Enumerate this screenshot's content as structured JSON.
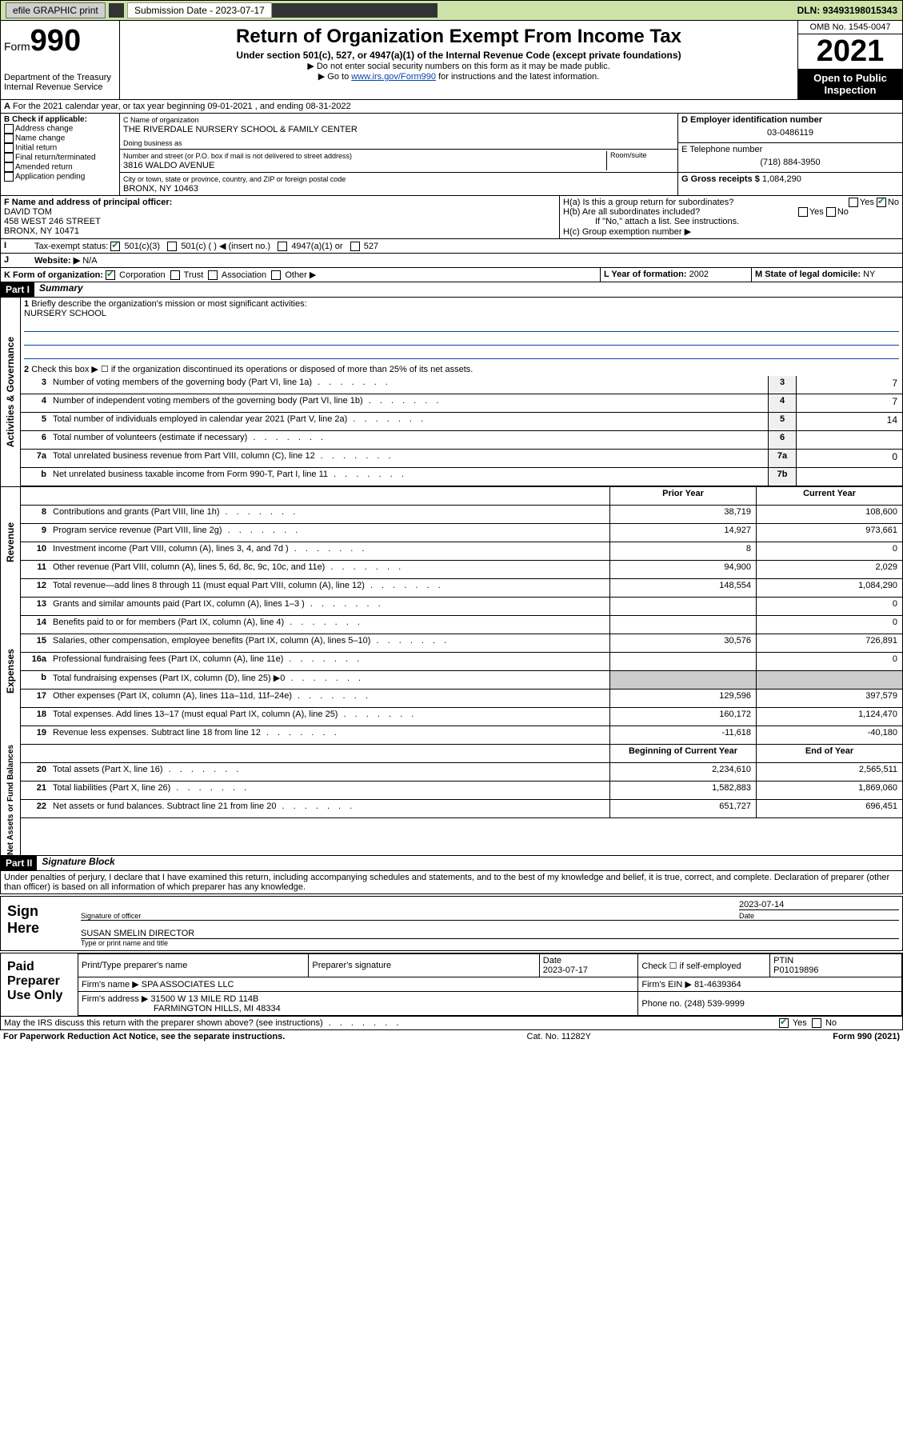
{
  "topbar": {
    "efile": "efile GRAPHIC print",
    "sub_label": "Submission Date - 2023-07-17",
    "dln": "DLN: 93493198015343"
  },
  "header": {
    "form_word": "Form",
    "form_num": "990",
    "dept": "Department of the Treasury Internal Revenue Service",
    "title": "Return of Organization Exempt From Income Tax",
    "sub1": "Under section 501(c), 527, or 4947(a)(1) of the Internal Revenue Code (except private foundations)",
    "sub2a": "▶ Do not enter social security numbers on this form as it may be made public.",
    "sub2b_pre": "▶ Go to ",
    "sub2b_link": "www.irs.gov/Form990",
    "sub2b_post": " for instructions and the latest information.",
    "omb": "OMB No. 1545-0047",
    "year": "2021",
    "open": "Open to Public Inspection"
  },
  "period": "For the 2021 calendar year, or tax year beginning 09-01-2021   , and ending 08-31-2022",
  "box_b": {
    "title": "B Check if applicable:",
    "items": [
      "Address change",
      "Name change",
      "Initial return",
      "Final return/terminated",
      "Amended return",
      "Application pending"
    ]
  },
  "box_c": {
    "label": "C Name of organization",
    "name": "THE RIVERDALE NURSERY SCHOOL & FAMILY CENTER",
    "dba_label": "Doing business as",
    "addr_label": "Number and street (or P.O. box if mail is not delivered to street address)",
    "room_label": "Room/suite",
    "addr": "3816 WALDO AVENUE",
    "city_label": "City or town, state or province, country, and ZIP or foreign postal code",
    "city": "BRONX, NY  10463"
  },
  "box_d": {
    "label": "D Employer identification number",
    "val": "03-0486119"
  },
  "box_e": {
    "label": "E Telephone number",
    "val": "(718) 884-3950"
  },
  "box_g": {
    "label": "G Gross receipts $",
    "val": "1,084,290"
  },
  "box_f": {
    "label": "F Name and address of principal officer:",
    "name": "DAVID TOM",
    "addr1": "458 WEST 246 STREET",
    "addr2": "BRONX, NY  10471"
  },
  "box_h": {
    "a": "H(a)  Is this a group return for subordinates?",
    "b": "H(b)  Are all subordinates included?",
    "note": "If \"No,\" attach a list. See instructions.",
    "c": "H(c)  Group exemption number ▶"
  },
  "box_i": {
    "label": "Tax-exempt status:",
    "opts": [
      "501(c)(3)",
      "501(c) (  ) ◀ (insert no.)",
      "4947(a)(1) or",
      "527"
    ]
  },
  "box_j": {
    "label": "Website: ▶",
    "val": "N/A"
  },
  "box_k": {
    "label": "K Form of organization:",
    "opts": [
      "Corporation",
      "Trust",
      "Association",
      "Other ▶"
    ]
  },
  "box_l": {
    "label": "L Year of formation:",
    "val": "2002"
  },
  "box_m": {
    "label": "M State of legal domicile:",
    "val": "NY"
  },
  "part1": {
    "hdr": "Part I",
    "title": "Summary",
    "l1": "Briefly describe the organization's mission or most significant activities:",
    "l1val": "NURSERY SCHOOL",
    "l2": "Check this box ▶ ☐  if the organization discontinued its operations or disposed of more than 25% of its net assets.",
    "gov_lines": [
      {
        "n": "3",
        "d": "Number of voting members of the governing body (Part VI, line 1a)",
        "box": "3",
        "v": "7"
      },
      {
        "n": "4",
        "d": "Number of independent voting members of the governing body (Part VI, line 1b)",
        "box": "4",
        "v": "7"
      },
      {
        "n": "5",
        "d": "Total number of individuals employed in calendar year 2021 (Part V, line 2a)",
        "box": "5",
        "v": "14"
      },
      {
        "n": "6",
        "d": "Total number of volunteers (estimate if necessary)",
        "box": "6",
        "v": ""
      },
      {
        "n": "7a",
        "d": "Total unrelated business revenue from Part VIII, column (C), line 12",
        "box": "7a",
        "v": "0"
      },
      {
        "n": "b",
        "d": "Net unrelated business taxable income from Form 990-T, Part I, line 11",
        "box": "7b",
        "v": ""
      }
    ],
    "col_hdr": {
      "prior": "Prior Year",
      "current": "Current Year"
    },
    "rev_lines": [
      {
        "n": "8",
        "d": "Contributions and grants (Part VIII, line 1h)",
        "p": "38,719",
        "c": "108,600"
      },
      {
        "n": "9",
        "d": "Program service revenue (Part VIII, line 2g)",
        "p": "14,927",
        "c": "973,661"
      },
      {
        "n": "10",
        "d": "Investment income (Part VIII, column (A), lines 3, 4, and 7d )",
        "p": "8",
        "c": "0"
      },
      {
        "n": "11",
        "d": "Other revenue (Part VIII, column (A), lines 5, 6d, 8c, 9c, 10c, and 11e)",
        "p": "94,900",
        "c": "2,029"
      },
      {
        "n": "12",
        "d": "Total revenue—add lines 8 through 11 (must equal Part VIII, column (A), line 12)",
        "p": "148,554",
        "c": "1,084,290"
      }
    ],
    "exp_lines": [
      {
        "n": "13",
        "d": "Grants and similar amounts paid (Part IX, column (A), lines 1–3 )",
        "p": "",
        "c": "0"
      },
      {
        "n": "14",
        "d": "Benefits paid to or for members (Part IX, column (A), line 4)",
        "p": "",
        "c": "0"
      },
      {
        "n": "15",
        "d": "Salaries, other compensation, employee benefits (Part IX, column (A), lines 5–10)",
        "p": "30,576",
        "c": "726,891"
      },
      {
        "n": "16a",
        "d": "Professional fundraising fees (Part IX, column (A), line 11e)",
        "p": "",
        "c": "0"
      },
      {
        "n": "b",
        "d": "Total fundraising expenses (Part IX, column (D), line 25) ▶0",
        "p": null,
        "c": null
      },
      {
        "n": "17",
        "d": "Other expenses (Part IX, column (A), lines 11a–11d, 11f–24e)",
        "p": "129,596",
        "c": "397,579"
      },
      {
        "n": "18",
        "d": "Total expenses. Add lines 13–17 (must equal Part IX, column (A), line 25)",
        "p": "160,172",
        "c": "1,124,470"
      },
      {
        "n": "19",
        "d": "Revenue less expenses. Subtract line 18 from line 12",
        "p": "-11,618",
        "c": "-40,180"
      }
    ],
    "net_hdr": {
      "begin": "Beginning of Current Year",
      "end": "End of Year"
    },
    "net_lines": [
      {
        "n": "20",
        "d": "Total assets (Part X, line 16)",
        "p": "2,234,610",
        "c": "2,565,511"
      },
      {
        "n": "21",
        "d": "Total liabilities (Part X, line 26)",
        "p": "1,582,883",
        "c": "1,869,060"
      },
      {
        "n": "22",
        "d": "Net assets or fund balances. Subtract line 21 from line 20",
        "p": "651,727",
        "c": "696,451"
      }
    ],
    "tabs": {
      "gov": "Activities & Governance",
      "rev": "Revenue",
      "exp": "Expenses",
      "net": "Net Assets or Fund Balances"
    }
  },
  "part2": {
    "hdr": "Part II",
    "title": "Signature Block",
    "decl": "Under penalties of perjury, I declare that I have examined this return, including accompanying schedules and statements, and to the best of my knowledge and belief, it is true, correct, and complete. Declaration of preparer (other than officer) is based on all information of which preparer has any knowledge.",
    "sign_here": "Sign Here",
    "sig_officer": "Signature of officer",
    "sig_date": "Date",
    "sig_date_val": "2023-07-14",
    "officer_name": "SUSAN SMELIN  DIRECTOR",
    "officer_sub": "Type or print name and title",
    "paid": "Paid Preparer Use Only",
    "prep_hdrs": [
      "Print/Type preparer's name",
      "Preparer's signature",
      "Date",
      "",
      "PTIN"
    ],
    "prep_date": "2023-07-17",
    "prep_check": "Check ☐ if self-employed",
    "ptin": "P01019896",
    "firm_name_l": "Firm's name    ▶",
    "firm_name": "SPA ASSOCIATES LLC",
    "firm_ein_l": "Firm's EIN ▶",
    "firm_ein": "81-4639364",
    "firm_addr_l": "Firm's address ▶",
    "firm_addr1": "31500 W 13 MILE RD 114B",
    "firm_addr2": "FARMINGTON HILLS, MI  48334",
    "phone_l": "Phone no.",
    "phone": "(248) 539-9999",
    "discuss": "May the IRS discuss this return with the preparer shown above? (see instructions)"
  },
  "footer": {
    "left": "For Paperwork Reduction Act Notice, see the separate instructions.",
    "mid": "Cat. No. 11282Y",
    "right": "Form 990 (2021)"
  }
}
